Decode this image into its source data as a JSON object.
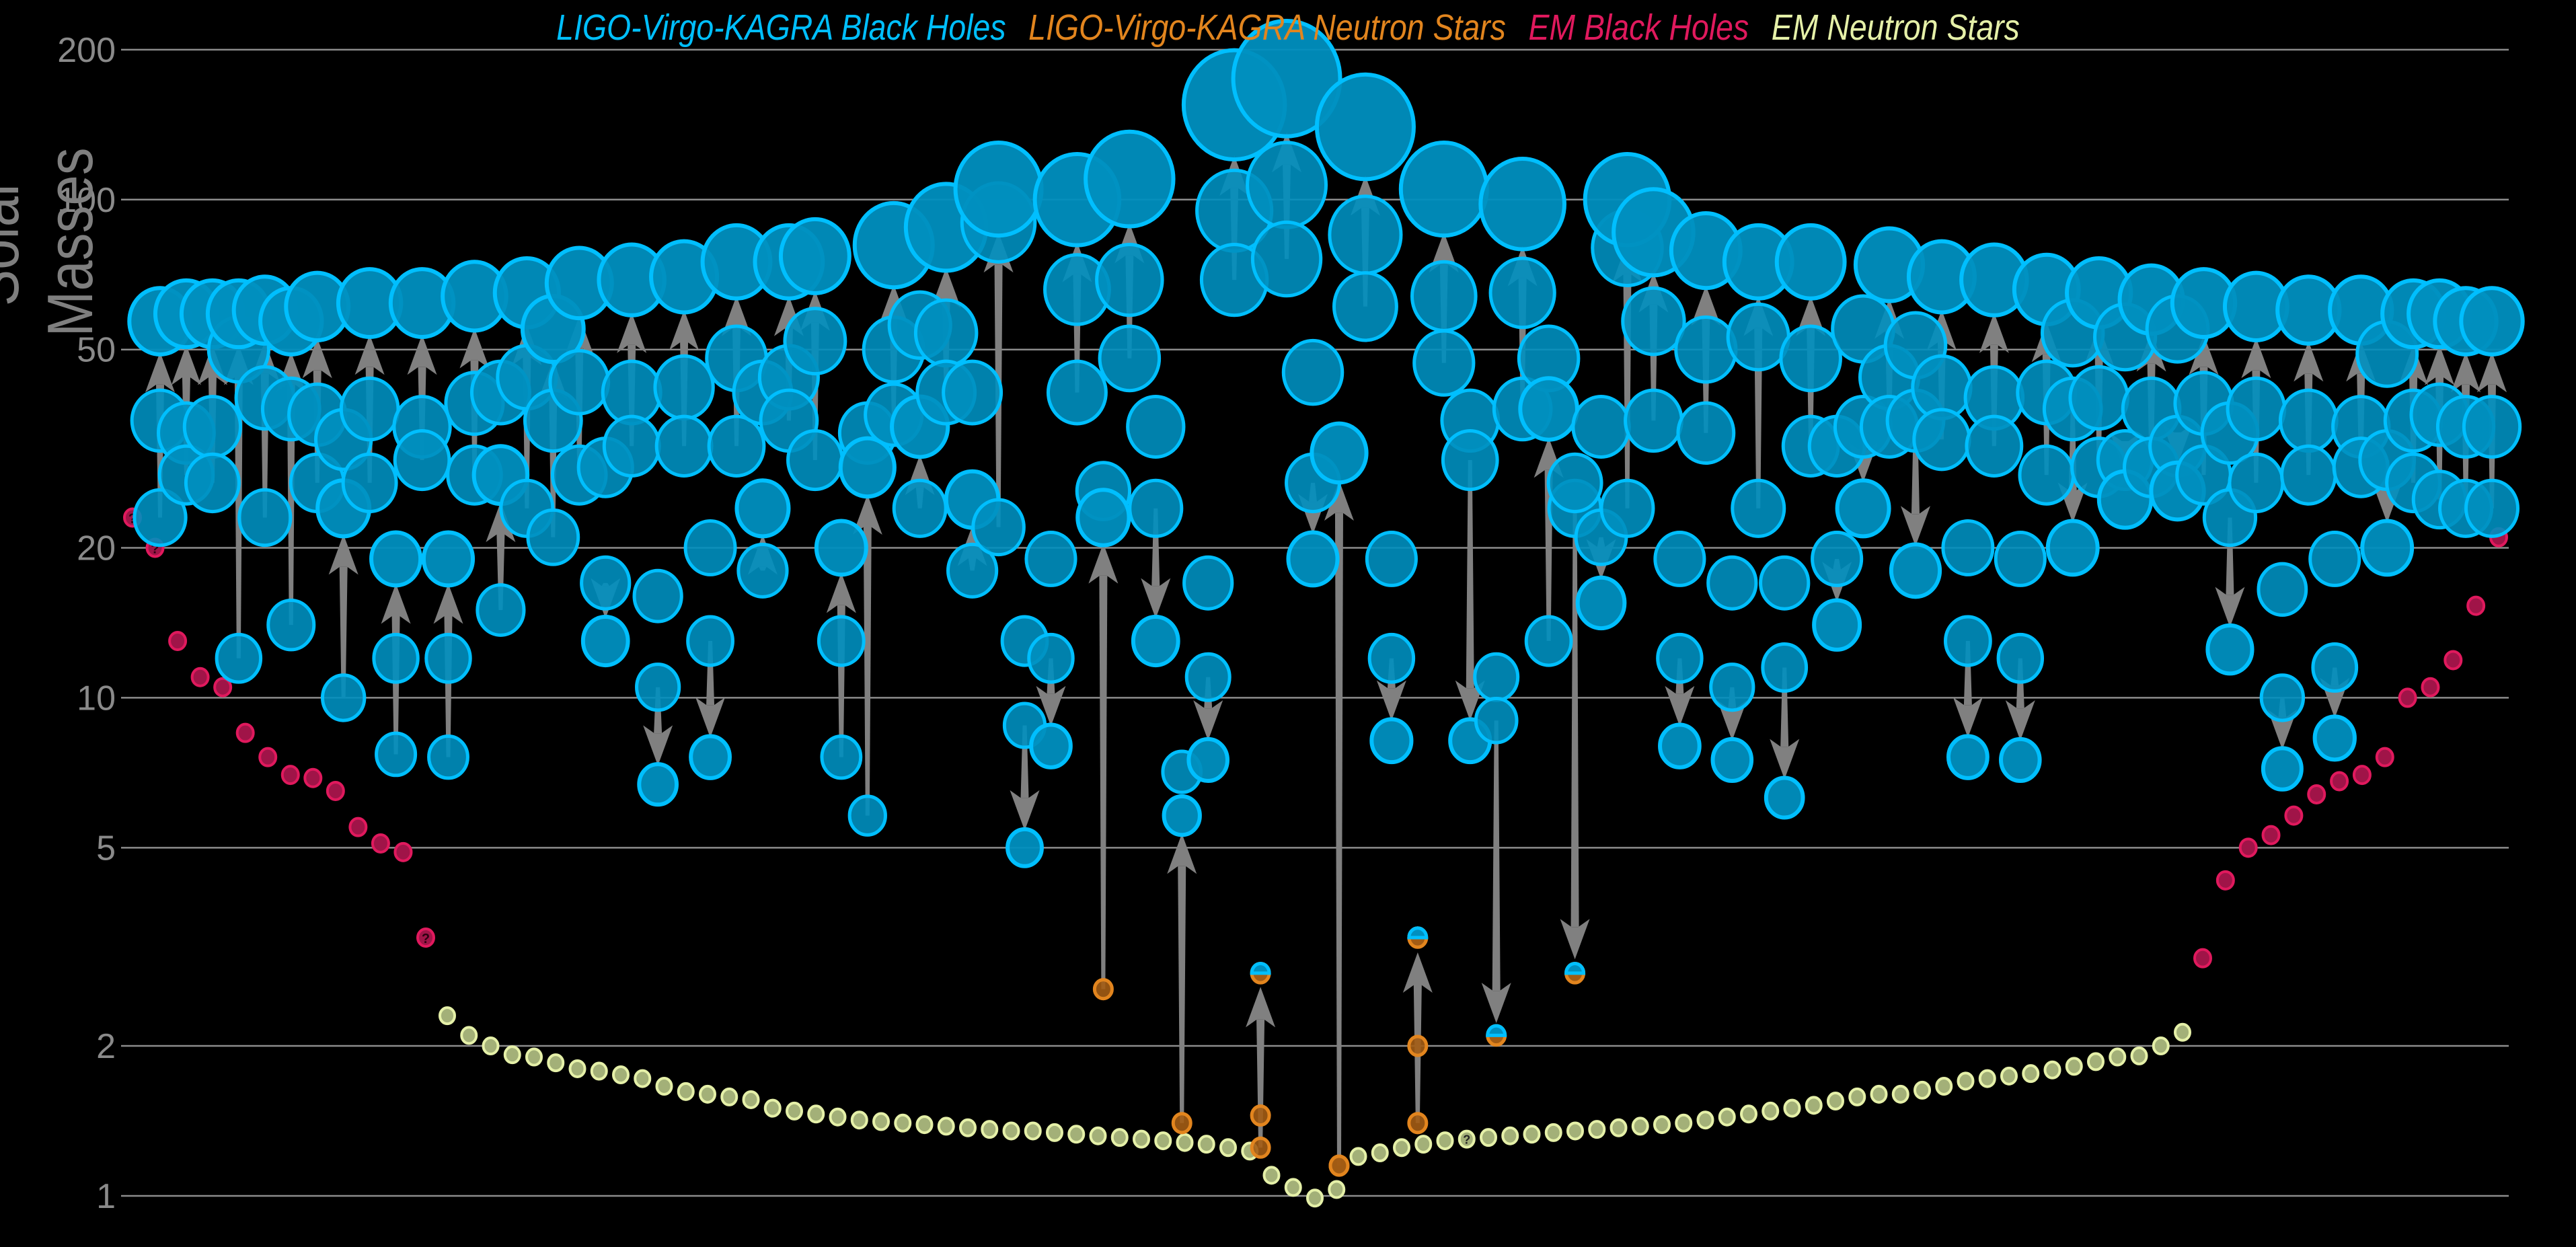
{
  "chart_data": {
    "type": "scatter",
    "title": "",
    "ylabel": "Solar Masses",
    "xlabel": "",
    "yscale": "log",
    "ylim": [
      0.93,
      215
    ],
    "yticks": [
      1,
      2,
      5,
      10,
      20,
      50,
      100,
      200
    ],
    "ytick_labels": [
      "1",
      "2",
      "5",
      "10",
      "20",
      "50",
      "100",
      "200"
    ],
    "grid": true,
    "legend_position": "top-center",
    "legend": [
      {
        "label": "LIGO-Virgo-KAGRA Black Holes",
        "color": "#00bfff"
      },
      {
        "label": "LIGO-Virgo-KAGRA Neutron Stars",
        "color": "#e2851e"
      },
      {
        "label": "EM Black Holes",
        "color": "#e0195d"
      },
      {
        "label": "EM Neutron Stars",
        "color": "#e5f0a8"
      }
    ],
    "gw_mergers_note": "Each merger: two progenitor masses (m1, m2) connected by an arrow to the remnant (final) mass. type: bbh = black hole pair, nsbh = neutron star + black hole, bns = neutron star pair.",
    "gw_mergers": [
      {
        "m1": 36,
        "m2": 23,
        "final": 57,
        "type": "bbh"
      },
      {
        "m1": 34,
        "m2": 28,
        "final": 59,
        "type": "bbh"
      },
      {
        "m1": 35,
        "m2": 27,
        "final": 59,
        "type": "bbh"
      },
      {
        "m1": 50,
        "m2": 12,
        "final": 59,
        "type": "bbh"
      },
      {
        "m1": 40,
        "m2": 23,
        "final": 60,
        "type": "bbh"
      },
      {
        "m1": 38,
        "m2": 14,
        "final": 57,
        "type": "bbh"
      },
      {
        "m1": 37,
        "m2": 27,
        "final": 61,
        "type": "bbh"
      },
      {
        "m1": 33,
        "m2": 10,
        "final": 24,
        "type": "bbh"
      },
      {
        "m1": 38,
        "m2": 27,
        "final": 62,
        "type": "bbh"
      },
      {
        "m1": 12,
        "m2": 7.7,
        "final": 19,
        "type": "bbh"
      },
      {
        "m1": 35,
        "m2": 30,
        "final": 62,
        "type": "bbh"
      },
      {
        "m1": 12,
        "m2": 7.6,
        "final": 19,
        "type": "bbh"
      },
      {
        "m1": 39,
        "m2": 28,
        "final": 64,
        "type": "bbh"
      },
      {
        "m1": 41,
        "m2": 15,
        "final": 28,
        "type": "bbh"
      },
      {
        "m1": 44,
        "m2": 24,
        "final": 65,
        "type": "bbh"
      },
      {
        "m1": 36,
        "m2": 21,
        "final": 55,
        "type": "bbh"
      },
      {
        "m1": 43,
        "m2": 28,
        "final": 68,
        "type": "bbh"
      },
      {
        "m1": 29,
        "m2": 17,
        "final": 13,
        "type": "bbh"
      },
      {
        "m1": 41,
        "m2": 32,
        "final": 69,
        "type": "bbh"
      },
      {
        "m1": 16,
        "m2": 10.5,
        "final": 6.7,
        "type": "bbh"
      },
      {
        "m1": 42,
        "m2": 32,
        "final": 70,
        "type": "bbh"
      },
      {
        "m1": 20,
        "m2": 13,
        "final": 7.6,
        "type": "bbh"
      },
      {
        "m1": 48,
        "m2": 32,
        "final": 75,
        "type": "bbh"
      },
      {
        "m1": 41,
        "m2": 18,
        "final": 24,
        "type": "bbh"
      },
      {
        "m1": 44,
        "m2": 36,
        "final": 75,
        "type": "bbh"
      },
      {
        "m1": 52,
        "m2": 30,
        "final": 77,
        "type": "bbh"
      },
      {
        "m1": 13,
        "m2": 7.6,
        "final": 20,
        "type": "bbh"
      },
      {
        "m1": 34,
        "m2": 5.8,
        "final": 29,
        "type": "bbh"
      },
      {
        "m1": 50,
        "m2": 37,
        "final": 81,
        "type": "bbh"
      },
      {
        "m1": 56,
        "m2": 24,
        "final": 35,
        "type": "bbh"
      },
      {
        "m1": 54,
        "m2": 41,
        "final": 88,
        "type": "bbh"
      },
      {
        "m1": 41,
        "m2": 18,
        "final": 25,
        "type": "bbh"
      },
      {
        "m1": 90,
        "m2": 22,
        "final": 105,
        "type": "bbh"
      },
      {
        "m1": 13,
        "m2": 8.8,
        "final": 5.0,
        "type": "bbh"
      },
      {
        "m1": 19,
        "m2": 12,
        "final": 8.0,
        "type": "bbh"
      },
      {
        "m1": 66,
        "m2": 41,
        "final": 100,
        "type": "bbh"
      },
      {
        "m1": 26,
        "m2": 2.6,
        "final": 23,
        "type": "nsbh"
      },
      {
        "m1": 69,
        "m2": 48,
        "final": 110,
        "type": "bbh"
      },
      {
        "m1": 35,
        "m2": 24,
        "final": 13,
        "type": "bbh"
      },
      {
        "m1": 7.1,
        "m2": 1.4,
        "final": 5.8,
        "type": "nsbh"
      },
      {
        "m1": 17,
        "m2": 11,
        "final": 7.5,
        "type": "bbh"
      },
      {
        "m1": 95,
        "m2": 69,
        "final": 155,
        "type": "bbh"
      },
      {
        "m1": 1.45,
        "m2": 1.25,
        "final": 2.8,
        "type": "bns"
      },
      {
        "m1": 107,
        "m2": 76,
        "final": 175,
        "type": "bbh"
      },
      {
        "m1": 45,
        "m2": 27,
        "final": 19,
        "type": "bbh"
      },
      {
        "m1": 1.15,
        "m2": 1.15,
        "final": 31,
        "type": "nsbh"
      },
      {
        "m1": 85,
        "m2": 61,
        "final": 140,
        "type": "bbh"
      },
      {
        "m1": 19,
        "m2": 12,
        "final": 8.2,
        "type": "bbh"
      },
      {
        "m1": 2.0,
        "m2": 1.4,
        "final": 3.3,
        "type": "bns"
      },
      {
        "m1": 64,
        "m2": 47,
        "final": 105,
        "type": "bbh"
      },
      {
        "m1": 36,
        "m2": 30,
        "final": 8.2,
        "type": "bbh"
      },
      {
        "m1": 11,
        "m2": 9,
        "final": 2.1,
        "type": "nsbh"
      },
      {
        "m1": 65,
        "m2": 38,
        "final": 98,
        "type": "bbh"
      },
      {
        "m1": 48,
        "m2": 13,
        "final": 38,
        "type": "bbh"
      },
      {
        "m1": 24,
        "m2": 27,
        "final": 2.8,
        "type": "nsbh"
      },
      {
        "m1": 35,
        "m2": 21,
        "final": 15.5,
        "type": "bbh"
      },
      {
        "m1": 80,
        "m2": 24,
        "final": 100,
        "type": "bbh"
      },
      {
        "m1": 57,
        "m2": 36,
        "final": 86,
        "type": "bbh"
      },
      {
        "m1": 19,
        "m2": 12,
        "final": 8.0,
        "type": "bbh"
      },
      {
        "m1": 50,
        "m2": 34,
        "final": 79,
        "type": "bbh"
      },
      {
        "m1": 17,
        "m2": 10.5,
        "final": 7.5,
        "type": "bbh"
      },
      {
        "m1": 53,
        "m2": 24,
        "final": 75,
        "type": "bbh"
      },
      {
        "m1": 17,
        "m2": 11.5,
        "final": 6.3,
        "type": "bbh"
      },
      {
        "m1": 48,
        "m2": 32,
        "final": 75,
        "type": "bbh"
      },
      {
        "m1": 32,
        "m2": 19,
        "final": 14,
        "type": "bbh"
      },
      {
        "m1": 55,
        "m2": 35,
        "final": 24,
        "type": "bbh"
      },
      {
        "m1": 44,
        "m2": 35,
        "final": 74,
        "type": "bbh"
      },
      {
        "m1": 51,
        "m2": 36,
        "final": 18,
        "type": "bbh"
      },
      {
        "m1": 42,
        "m2": 33,
        "final": 70,
        "type": "bbh"
      },
      {
        "m1": 20,
        "m2": 13,
        "final": 7.6,
        "type": "bbh"
      },
      {
        "m1": 40,
        "m2": 32,
        "final": 69,
        "type": "bbh"
      },
      {
        "m1": 19,
        "m2": 12,
        "final": 7.5,
        "type": "bbh"
      },
      {
        "m1": 41,
        "m2": 28,
        "final": 66,
        "type": "bbh"
      },
      {
        "m1": 54,
        "m2": 38,
        "final": 20,
        "type": "bbh"
      },
      {
        "m1": 40,
        "m2": 29,
        "final": 65,
        "type": "bbh"
      },
      {
        "m1": 53,
        "m2": 30,
        "final": 25,
        "type": "bbh"
      },
      {
        "m1": 38,
        "m2": 29,
        "final": 63,
        "type": "bbh"
      },
      {
        "m1": 55,
        "m2": 32,
        "final": 26,
        "type": "bbh"
      },
      {
        "m1": 39,
        "m2": 28,
        "final": 62,
        "type": "bbh"
      },
      {
        "m1": 34,
        "m2": 23,
        "final": 12.5,
        "type": "bbh"
      },
      {
        "m1": 38,
        "m2": 27,
        "final": 61,
        "type": "bbh"
      },
      {
        "m1": 16.5,
        "m2": 10,
        "final": 7.2,
        "type": "bbh"
      },
      {
        "m1": 36,
        "m2": 28,
        "final": 60,
        "type": "bbh"
      },
      {
        "m1": 19,
        "m2": 11.5,
        "final": 8.3,
        "type": "bbh"
      },
      {
        "m1": 35,
        "m2": 29,
        "final": 60,
        "type": "bbh"
      },
      {
        "m1": 49,
        "m2": 30,
        "final": 20,
        "type": "bbh"
      },
      {
        "m1": 36,
        "m2": 27,
        "final": 59,
        "type": "bbh"
      },
      {
        "m1": 37,
        "m2": 25,
        "final": 59,
        "type": "bbh"
      },
      {
        "m1": 35,
        "m2": 24,
        "final": 57,
        "type": "bbh"
      },
      {
        "m1": 35,
        "m2": 24,
        "final": 57,
        "type": "bbh"
      }
    ],
    "em_black_holes": [
      23,
      20,
      13,
      11,
      10.5,
      8.5,
      7.6,
      7.0,
      6.9,
      6.5,
      5.5,
      5.1,
      4.9,
      3.3,
      3.0,
      4.3,
      5.0,
      5.3,
      5.8,
      6.4,
      6.8,
      7.0,
      7.6,
      10.0,
      10.5,
      11.9,
      15.3,
      21.0
    ],
    "em_black_holes_uncertain": [
      0,
      1,
      13
    ],
    "em_neutron_stars": [
      2.3,
      2.1,
      2.0,
      1.92,
      1.9,
      1.85,
      1.8,
      1.78,
      1.75,
      1.72,
      1.66,
      1.62,
      1.6,
      1.58,
      1.56,
      1.5,
      1.48,
      1.46,
      1.44,
      1.42,
      1.41,
      1.4,
      1.39,
      1.38,
      1.37,
      1.36,
      1.35,
      1.35,
      1.34,
      1.33,
      1.32,
      1.31,
      1.3,
      1.29,
      1.28,
      1.27,
      1.25,
      1.23,
      1.1,
      1.04,
      0.99,
      1.03,
      1.2,
      1.22,
      1.25,
      1.27,
      1.29,
      1.3,
      1.31,
      1.32,
      1.33,
      1.34,
      1.35,
      1.36,
      1.37,
      1.38,
      1.39,
      1.4,
      1.42,
      1.44,
      1.46,
      1.48,
      1.5,
      1.52,
      1.55,
      1.58,
      1.6,
      1.6,
      1.63,
      1.66,
      1.7,
      1.72,
      1.74,
      1.76,
      1.79,
      1.82,
      1.86,
      1.9,
      1.91,
      2.0,
      2.13
    ],
    "em_neutron_stars_uncertain": [
      47
    ]
  }
}
